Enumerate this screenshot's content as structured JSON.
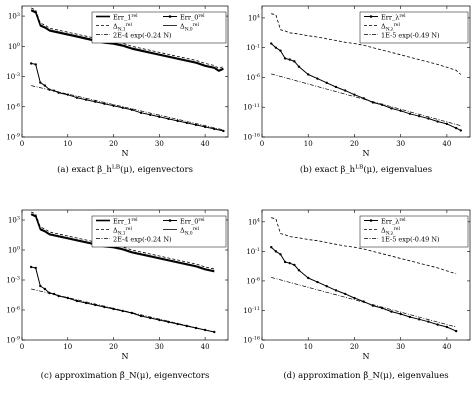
{
  "figure": {
    "panels": [
      {
        "id": "a",
        "caption": "(a) exact β_h^{LB}(μ), eigenvectors",
        "xlabel": "N",
        "xticks": [
          0,
          10,
          20,
          30,
          40
        ],
        "ytick_labels": [
          "10^{-9}",
          "10^{-6}",
          "10^{-3}",
          "10^{0}",
          "10^{3}"
        ],
        "legend": [
          "Err_1^{rel}",
          "Err_0^{rel}",
          "Δ_{N,1}^{rel}",
          "Δ_{N,0}^{rel}",
          "2E-4 exp(-0.24 N)"
        ]
      },
      {
        "id": "b",
        "caption": "(b) exact β_h^{LB}(μ), eigenvalues",
        "xlabel": "N",
        "xticks": [
          0,
          10,
          20,
          30,
          40
        ],
        "ytick_labels": [
          "10^{-16}",
          "10^{-11}",
          "10^{-6}",
          "10^{-1}",
          "10^{4}"
        ],
        "legend": [
          "Err_λ^{rel}",
          "Δ_{N,λ}^{rel}",
          "1E-5 exp(-0.49 N)"
        ]
      },
      {
        "id": "c",
        "caption": "(c) approximation β̃_N(μ), eigenvectors",
        "xlabel": "N",
        "xticks": [
          0,
          10,
          20,
          30,
          40
        ],
        "ytick_labels": [
          "10^{-9}",
          "10^{-6}",
          "10^{-3}",
          "10^{0}",
          "10^{3}"
        ],
        "legend": [
          "Err_1^{rel}",
          "Err_0^{rel}",
          "Δ_{N,1}^{rel}",
          "Δ_{N,0}^{rel}",
          "2E-4 exp(-0.24 N)"
        ]
      },
      {
        "id": "d",
        "caption": "(d) approximation β̃_N(μ), eigenvalues",
        "xlabel": "N",
        "xticks": [
          0,
          10,
          20,
          30,
          40
        ],
        "ytick_labels": [
          "10^{-16}",
          "10^{-11}",
          "10^{-6}",
          "10^{-1}",
          "10^{4}"
        ],
        "legend": [
          "Err_λ^{rel}",
          "Δ_{N,λ}^{rel}",
          "1E-5 exp(-0.49 N)"
        ]
      }
    ]
  },
  "chart_data": [
    {
      "type": "line",
      "y_scale": "log",
      "xlim": [
        0,
        45
      ],
      "ylim_log10": [
        -9,
        4
      ],
      "yticks_log10": [
        -9,
        -6,
        -3,
        0,
        3
      ],
      "series": [
        {
          "name": "Err_1^{rel}",
          "style": "solid-thick",
          "x": [
            2,
            3,
            4,
            5,
            6,
            8,
            10,
            12,
            14,
            16,
            18,
            20,
            22,
            24,
            26,
            28,
            30,
            32,
            34,
            36,
            38,
            40,
            42,
            43,
            44
          ],
          "log10y": [
            3.6,
            3.4,
            2.1,
            1.9,
            1.6,
            1.4,
            1.2,
            1.0,
            0.8,
            0.6,
            0.4,
            0.3,
            0.1,
            -0.2,
            -0.4,
            -0.6,
            -0.8,
            -1.0,
            -1.2,
            -1.4,
            -1.6,
            -1.9,
            -2.1,
            -2.4,
            -2.2
          ]
        },
        {
          "name": "Err_0^{rel}",
          "style": "solid-marker",
          "x": [
            2,
            3,
            4,
            5,
            6,
            7,
            8,
            10,
            12,
            14,
            16,
            18,
            20,
            22,
            24,
            26,
            28,
            30,
            32,
            34,
            36,
            38,
            40,
            42,
            44
          ],
          "log10y": [
            -1.7,
            -1.8,
            -3.6,
            -3.9,
            -4.3,
            -4.4,
            -4.6,
            -4.8,
            -5.1,
            -5.3,
            -5.5,
            -5.7,
            -5.9,
            -6.1,
            -6.3,
            -6.6,
            -6.8,
            -7.0,
            -7.2,
            -7.4,
            -7.6,
            -7.8,
            -8.0,
            -8.2,
            -8.4
          ]
        },
        {
          "name": "Δ_{N,1}^{rel}",
          "style": "dashed",
          "x": [
            2,
            3,
            4,
            5,
            6,
            8,
            10,
            12,
            14,
            16,
            18,
            20,
            22,
            24,
            26,
            28,
            30,
            32,
            34,
            36,
            38,
            40,
            42,
            43,
            44
          ],
          "log10y": [
            3.8,
            3.6,
            2.3,
            2.1,
            1.8,
            1.6,
            1.4,
            1.2,
            1.0,
            0.8,
            0.6,
            0.5,
            0.3,
            0.0,
            -0.2,
            -0.4,
            -0.6,
            -0.8,
            -1.0,
            -1.2,
            -1.4,
            -1.7,
            -1.9,
            -2.2,
            -2.0
          ]
        },
        {
          "name": "Δ_{N,0}^{rel}",
          "style": "solid",
          "x": [
            2,
            3,
            4,
            5,
            6,
            8,
            10,
            12,
            14,
            16,
            18,
            20,
            22,
            24,
            26,
            28,
            30,
            32,
            34,
            36,
            38,
            40,
            42,
            43,
            44
          ],
          "log10y": [
            3.5,
            3.3,
            2.0,
            1.8,
            1.5,
            1.3,
            1.1,
            0.9,
            0.7,
            0.5,
            0.3,
            0.2,
            0.0,
            -0.3,
            -0.5,
            -0.7,
            -0.9,
            -1.1,
            -1.3,
            -1.5,
            -1.7,
            -2.0,
            -2.2,
            -2.5,
            -2.3
          ]
        },
        {
          "name": "2E-4 exp(-0.24 N)",
          "style": "dashdot",
          "x": [
            2,
            44
          ],
          "log10y": [
            -3.9,
            -8.3
          ]
        }
      ]
    },
    {
      "type": "line",
      "y_scale": "log",
      "xlim": [
        0,
        45
      ],
      "ylim_log10": [
        -16,
        6
      ],
      "yticks_log10": [
        -16,
        -11,
        -6,
        -1,
        4
      ],
      "series": [
        {
          "name": "Err_λ^{rel}",
          "style": "solid-marker",
          "x": [
            2,
            3,
            4,
            5,
            6,
            7,
            8,
            10,
            12,
            14,
            16,
            18,
            20,
            22,
            24,
            26,
            28,
            30,
            32,
            34,
            36,
            38,
            40,
            42,
            43
          ],
          "log10y": [
            -0.3,
            -1.0,
            -1.5,
            -2.8,
            -3.0,
            -3.3,
            -4.2,
            -5.5,
            -6.2,
            -6.9,
            -7.6,
            -8.2,
            -8.9,
            -9.5,
            -10.2,
            -10.6,
            -11.2,
            -11.6,
            -12.1,
            -12.5,
            -12.9,
            -13.4,
            -13.8,
            -14.5,
            -14.9
          ]
        },
        {
          "name": "Δ_{N,λ}^{rel}",
          "style": "dashed",
          "x": [
            2,
            3,
            4,
            5,
            6,
            8,
            10,
            12,
            14,
            16,
            18,
            20,
            22,
            24,
            26,
            28,
            30,
            32,
            34,
            36,
            38,
            40,
            42,
            43
          ],
          "log10y": [
            4.7,
            4.5,
            2.0,
            1.8,
            1.5,
            1.3,
            1.0,
            0.8,
            0.5,
            0.2,
            -0.1,
            -0.3,
            -0.6,
            -1.0,
            -1.4,
            -1.8,
            -2.2,
            -2.6,
            -3.0,
            -3.4,
            -3.8,
            -4.3,
            -4.8,
            -5.5
          ]
        },
        {
          "name": "1E-5 exp(-0.49 N)",
          "style": "dashdot",
          "x": [
            2,
            43
          ],
          "log10y": [
            -5.4,
            -14.1
          ]
        }
      ]
    },
    {
      "type": "line",
      "y_scale": "log",
      "xlim": [
        0,
        45
      ],
      "ylim_log10": [
        -9,
        4
      ],
      "yticks_log10": [
        -9,
        -6,
        -3,
        0,
        3
      ],
      "series": [
        {
          "name": "Err_1^{rel}",
          "style": "solid-thick",
          "x": [
            2,
            3,
            4,
            5,
            6,
            8,
            10,
            12,
            14,
            16,
            18,
            20,
            22,
            24,
            26,
            28,
            30,
            32,
            34,
            36,
            38,
            40,
            42
          ],
          "log10y": [
            3.6,
            3.4,
            2.1,
            1.9,
            1.6,
            1.4,
            1.2,
            1.0,
            0.8,
            0.6,
            0.4,
            0.3,
            0.1,
            -0.2,
            -0.4,
            -0.6,
            -0.8,
            -1.0,
            -1.2,
            -1.4,
            -1.6,
            -1.9,
            -2.1
          ]
        },
        {
          "name": "Err_0^{rel}",
          "style": "solid-marker",
          "x": [
            2,
            3,
            4,
            5,
            6,
            7,
            8,
            10,
            12,
            14,
            16,
            18,
            20,
            22,
            24,
            26,
            28,
            30,
            32,
            34,
            36,
            38,
            40,
            42
          ],
          "log10y": [
            -1.7,
            -1.8,
            -3.6,
            -3.9,
            -4.3,
            -4.4,
            -4.6,
            -4.8,
            -5.1,
            -5.3,
            -5.5,
            -5.7,
            -5.9,
            -6.1,
            -6.3,
            -6.6,
            -6.8,
            -7.0,
            -7.2,
            -7.4,
            -7.6,
            -7.8,
            -8.0,
            -8.2
          ]
        },
        {
          "name": "Δ_{N,1}^{rel}",
          "style": "dashed",
          "x": [
            2,
            3,
            4,
            5,
            6,
            8,
            10,
            12,
            14,
            16,
            18,
            20,
            22,
            24,
            26,
            28,
            30,
            32,
            34,
            36,
            38,
            40,
            42
          ],
          "log10y": [
            3.8,
            3.6,
            2.3,
            2.1,
            1.8,
            1.6,
            1.4,
            1.2,
            1.0,
            0.8,
            0.6,
            0.5,
            0.3,
            0.0,
            -0.2,
            -0.4,
            -0.6,
            -0.8,
            -1.0,
            -1.2,
            -1.4,
            -1.7,
            -1.9
          ]
        },
        {
          "name": "Δ_{N,0}^{rel}",
          "style": "solid",
          "x": [
            2,
            3,
            4,
            5,
            6,
            8,
            10,
            12,
            14,
            16,
            18,
            20,
            22,
            24,
            26,
            28,
            30,
            32,
            34,
            36,
            38,
            40,
            42
          ],
          "log10y": [
            3.5,
            3.3,
            2.0,
            1.8,
            1.5,
            1.3,
            1.1,
            0.9,
            0.7,
            0.5,
            0.3,
            0.2,
            0.0,
            -0.3,
            -0.5,
            -0.7,
            -0.9,
            -1.1,
            -1.3,
            -1.5,
            -1.7,
            -2.0,
            -2.2
          ]
        },
        {
          "name": "2E-4 exp(-0.24 N)",
          "style": "dashdot",
          "x": [
            2,
            42
          ],
          "log10y": [
            -3.9,
            -8.2
          ]
        }
      ]
    },
    {
      "type": "line",
      "y_scale": "log",
      "xlim": [
        0,
        45
      ],
      "ylim_log10": [
        -16,
        6
      ],
      "yticks_log10": [
        -16,
        -11,
        -6,
        -1,
        4
      ],
      "series": [
        {
          "name": "Err_λ^{rel}",
          "style": "solid-marker",
          "x": [
            2,
            3,
            4,
            5,
            6,
            7,
            8,
            10,
            12,
            14,
            16,
            18,
            20,
            22,
            24,
            26,
            28,
            30,
            32,
            34,
            36,
            38,
            40,
            42
          ],
          "log10y": [
            -0.3,
            -1.0,
            -1.5,
            -2.8,
            -3.0,
            -3.3,
            -4.2,
            -5.5,
            -6.2,
            -6.9,
            -7.6,
            -8.2,
            -8.9,
            -9.5,
            -10.2,
            -10.6,
            -11.2,
            -11.6,
            -12.1,
            -12.5,
            -12.9,
            -13.4,
            -13.8,
            -14.5
          ]
        },
        {
          "name": "Δ_{N,λ}^{rel}",
          "style": "dashed",
          "x": [
            2,
            3,
            4,
            5,
            6,
            8,
            10,
            12,
            14,
            16,
            18,
            20,
            22,
            24,
            26,
            28,
            30,
            32,
            34,
            36,
            38,
            40,
            42
          ],
          "log10y": [
            4.7,
            4.5,
            2.0,
            1.8,
            1.5,
            1.3,
            1.0,
            0.8,
            0.5,
            0.2,
            -0.1,
            -0.3,
            -0.6,
            -1.0,
            -1.4,
            -1.8,
            -2.2,
            -2.6,
            -3.0,
            -3.4,
            -3.8,
            -4.3,
            -4.8
          ]
        },
        {
          "name": "1E-5 exp(-0.49 N)",
          "style": "dashdot",
          "x": [
            2,
            42
          ],
          "log10y": [
            -5.4,
            -13.8
          ]
        }
      ]
    }
  ]
}
